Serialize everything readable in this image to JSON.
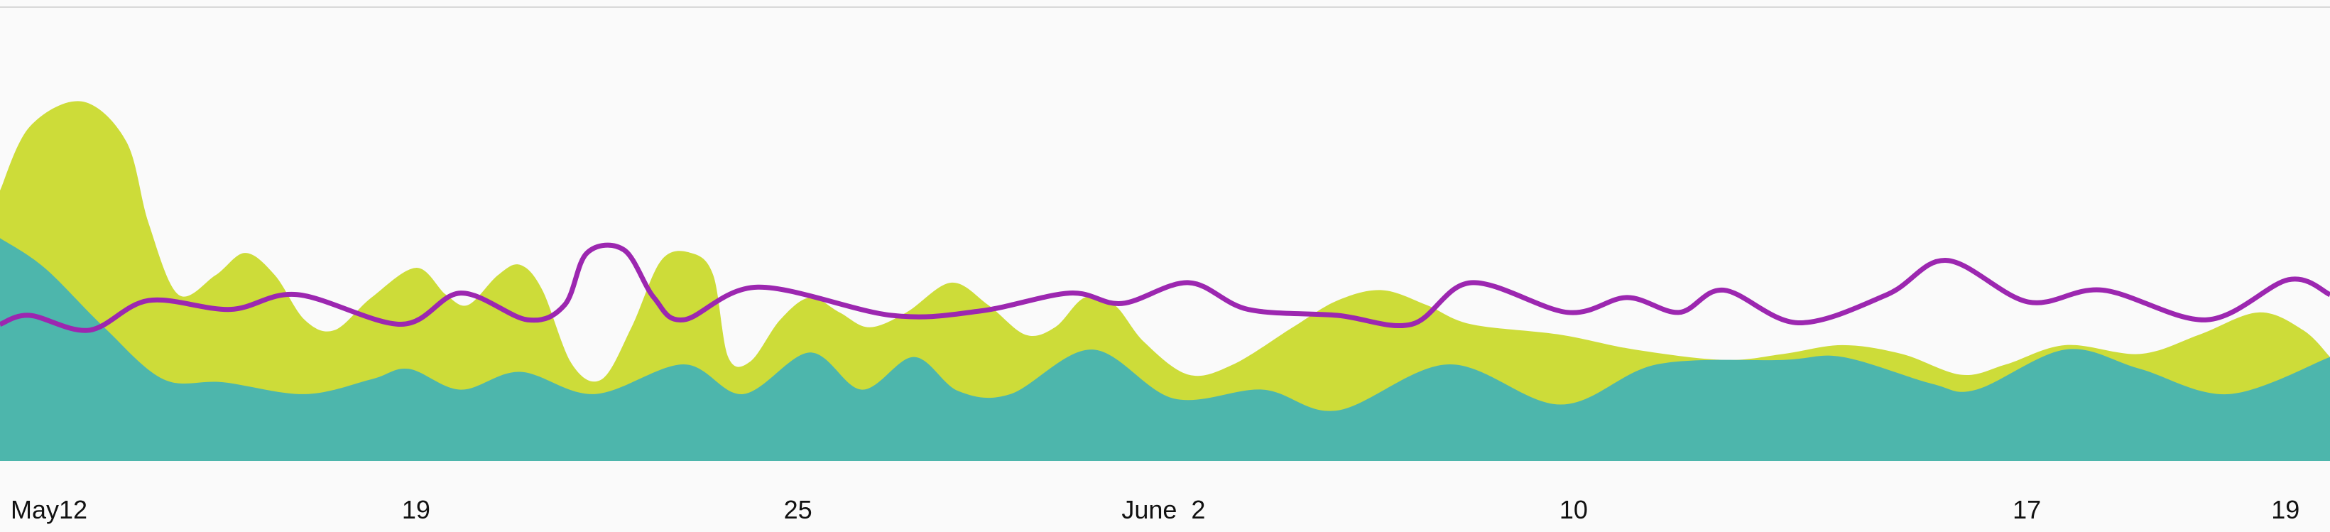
{
  "chart_data": {
    "type": "area",
    "xlim": [
      0,
      1568
    ],
    "ylim": [
      0,
      305
    ],
    "xticks": [
      {
        "value": 33,
        "label": "May12"
      },
      {
        "value": 280,
        "label": "19"
      },
      {
        "value": 537,
        "label": "25"
      },
      {
        "value": 783,
        "label": "June  2"
      },
      {
        "value": 1059,
        "label": "10"
      },
      {
        "value": 1364,
        "label": "17"
      },
      {
        "value": 1538,
        "label": "19"
      }
    ],
    "series": [
      {
        "color": "#cddc39",
        "style": "area",
        "x": [
          0,
          20,
          55,
          85,
          100,
          120,
          145,
          165,
          185,
          205,
          225,
          250,
          280,
          300,
          315,
          335,
          350,
          365,
          385,
          405,
          425,
          445,
          465,
          480,
          490,
          505,
          525,
          545,
          565,
          585,
          610,
          640,
          665,
          690,
          710,
          730,
          750,
          770,
          800,
          830,
          870,
          900,
          930,
          960,
          990,
          1050,
          1100,
          1160,
          1200,
          1240,
          1280,
          1320,
          1350,
          1390,
          1440,
          1480,
          1520,
          1550,
          1568
        ],
        "values": [
          182,
          225,
          242,
          215,
          160,
          112,
          125,
          140,
          125,
          95,
          88,
          110,
          130,
          112,
          105,
          125,
          132,
          115,
          65,
          55,
          90,
          135,
          140,
          125,
          70,
          67,
          95,
          110,
          100,
          90,
          100,
          120,
          105,
          85,
          90,
          110,
          105,
          80,
          58,
          65,
          90,
          108,
          115,
          105,
          92,
          85,
          75,
          68,
          72,
          78,
          72,
          58,
          65,
          78,
          72,
          85,
          100,
          88,
          70
        ]
      },
      {
        "color": "#4db6ac",
        "style": "area",
        "x": [
          0,
          30,
          70,
          110,
          150,
          205,
          250,
          275,
          310,
          350,
          400,
          460,
          500,
          545,
          580,
          615,
          645,
          680,
          735,
          790,
          850,
          900,
          975,
          1050,
          1115,
          1200,
          1240,
          1300,
          1330,
          1390,
          1440,
          1500,
          1568
        ],
        "values": [
          150,
          130,
          90,
          55,
          53,
          45,
          55,
          62,
          48,
          60,
          45,
          65,
          45,
          73,
          48,
          70,
          47,
          45,
          75,
          42,
          48,
          34,
          65,
          38,
          65,
          68,
          70,
          52,
          48,
          75,
          62,
          45,
          70
        ]
      },
      {
        "color": "#9c27b0",
        "style": "line",
        "x": [
          0,
          20,
          60,
          100,
          155,
          200,
          270,
          310,
          355,
          380,
          395,
          420,
          440,
          460,
          510,
          600,
          660,
          720,
          755,
          800,
          840,
          900,
          950,
          990,
          1055,
          1095,
          1130,
          1160,
          1210,
          1270,
          1310,
          1365,
          1415,
          1485,
          1540,
          1568
        ],
        "values": [
          92,
          98,
          88,
          108,
          102,
          112,
          92,
          113,
          95,
          105,
          140,
          142,
          110,
          95,
          117,
          98,
          101,
          113,
          106,
          120,
          102,
          98,
          92,
          120,
          100,
          110,
          100,
          115,
          93,
          112,
          135,
          107,
          115,
          95,
          122,
          112
        ]
      }
    ]
  }
}
